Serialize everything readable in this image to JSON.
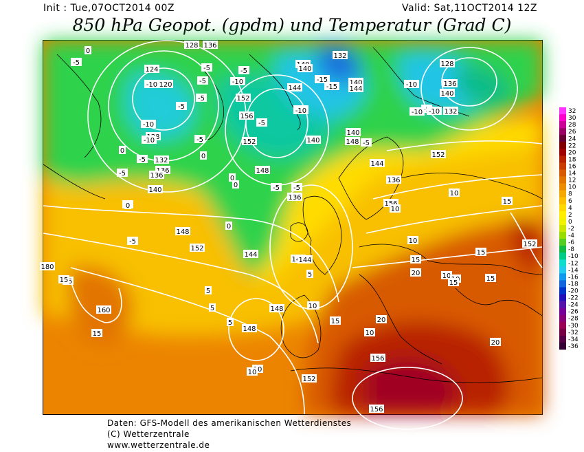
{
  "header": {
    "init": "Init : Tue,07OCT2014 00Z",
    "valid": "Valid: Sat,11OCT2014 12Z",
    "title": "850 hPa Geopot. (gpdm) und Temperatur (Grad C)"
  },
  "footer": {
    "line1": "Daten: GFS-Modell des amerikanischen Wetterdienstes",
    "line2": "(C) Wetterzentrale",
    "line3": "www.wetterzentrale.de"
  },
  "legend": {
    "labels": [
      "32",
      "30",
      "28",
      "26",
      "24",
      "22",
      "20",
      "18",
      "16",
      "14",
      "12",
      "10",
      "8",
      "6",
      "4",
      "2",
      "0",
      "-2",
      "-4",
      "-6",
      "-8",
      "-10",
      "-12",
      "-14",
      "-16",
      "-18",
      "-20",
      "-22",
      "-24",
      "-26",
      "-28",
      "-30",
      "-32",
      "-34",
      "-36"
    ],
    "colors": [
      "#ff33ff",
      "#ff00cc",
      "#cc0099",
      "#990066",
      "#660033",
      "#800000",
      "#a00000",
      "#b82000",
      "#c83c00",
      "#d85a00",
      "#e27400",
      "#ec8c00",
      "#f5a800",
      "#fcc000",
      "#ffd800",
      "#ffee00",
      "#f2f200",
      "#cce600",
      "#99dd00",
      "#55cc22",
      "#11bb44",
      "#00cc88",
      "#11ddcc",
      "#22ccee",
      "#1199ee",
      "#1166dd",
      "#0033cc",
      "#2211bb",
      "#5511aa",
      "#770099",
      "#880077",
      "#990055",
      "#770044",
      "#550044",
      "#330033"
    ]
  },
  "map": {
    "geopotential_labels": [
      "128",
      "136",
      "124",
      "120",
      "132",
      "128",
      "136",
      "140",
      "144",
      "140",
      "152",
      "156",
      "152",
      "148",
      "140",
      "148",
      "140",
      "144",
      "132",
      "128",
      "136",
      "140",
      "136",
      "132",
      "140",
      "144",
      "156",
      "152",
      "144",
      "148",
      "152",
      "144",
      "148",
      "160",
      "148",
      "152",
      "156",
      "156",
      "180",
      "152",
      "144",
      "136",
      "140",
      "136"
    ],
    "temperature_labels": [
      "0",
      "-5",
      "-5",
      "-10",
      "-5",
      "-5",
      "-10",
      "-5",
      "-5",
      "-10",
      "-5",
      "-5",
      "-10",
      "-15",
      "-15",
      "-10",
      "-5",
      "-10",
      "-5",
      "-10",
      "-5",
      "-10",
      "0",
      "-5",
      "0",
      "0",
      "-5",
      "-5",
      "0",
      "0",
      "-5",
      "5",
      "10",
      "15",
      "15",
      "15",
      "5",
      "10",
      "10",
      "10",
      "15",
      "10",
      "15",
      "10",
      "15",
      "15",
      "20",
      "20",
      "15",
      "10",
      "10",
      "20",
      "5",
      "5",
      "10",
      "10",
      "0",
      "-5",
      "-10",
      "15"
    ]
  }
}
